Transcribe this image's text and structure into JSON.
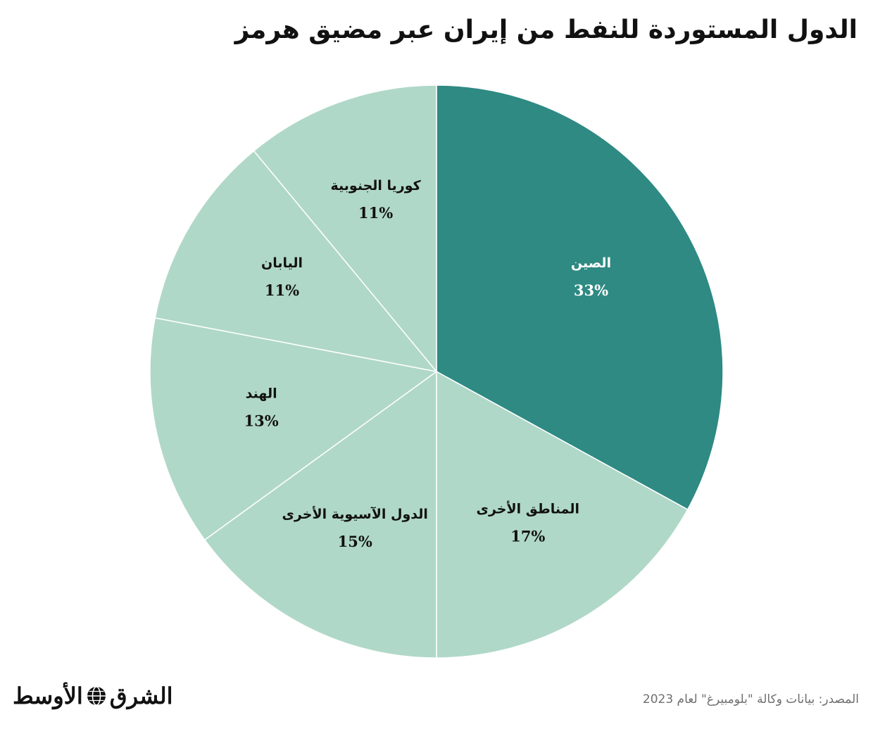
{
  "title": "الدول المستوردة للنفط من إيران عبر مضيق هرمز",
  "source": "المصدر: بيانات وكالة \"بلومبيرغ\" لعام 2023",
  "brand": {
    "part1": "الشرق",
    "part2": "الأوسط",
    "icon": "globe-icon"
  },
  "colors": {
    "accent": "#2e8a83",
    "light": "#b0d8c8",
    "divider": "#ffffff"
  },
  "chart_data": {
    "type": "pie",
    "title": "الدول المستوردة للنفط من إيران عبر مضيق هرمز",
    "start": "12 o'clock",
    "direction": "clockwise",
    "slices": [
      {
        "label": "الصين",
        "value": 33,
        "display": "33%",
        "color": "#2e8a83",
        "text_color": "#ffffff"
      },
      {
        "label": "المناطق الأخرى",
        "value": 17,
        "display": "17%",
        "color": "#b0d8c8",
        "text_color": "#111111"
      },
      {
        "label": "الدول الآسيوية الأخرى",
        "value": 15,
        "display": "15%",
        "color": "#b0d8c8",
        "text_color": "#111111"
      },
      {
        "label": "الهند",
        "value": 13,
        "display": "13%",
        "color": "#b0d8c8",
        "text_color": "#111111"
      },
      {
        "label": "اليابان",
        "value": 11,
        "display": "11%",
        "color": "#b0d8c8",
        "text_color": "#111111"
      },
      {
        "label": "كوريا الجنوبية",
        "value": 11,
        "display": "11%",
        "color": "#b0d8c8",
        "text_color": "#111111"
      }
    ]
  }
}
